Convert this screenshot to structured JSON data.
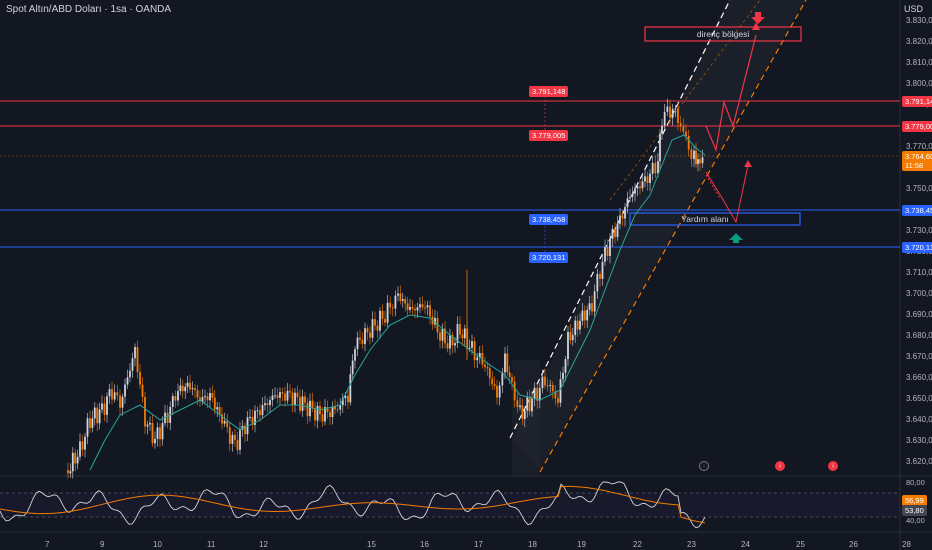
{
  "header": {
    "title": "Spot Altın/ABD Doları · 1sa · OANDA",
    "currency": "USD"
  },
  "price_axis": {
    "ticks": [
      "3.830,000",
      "3.820,000",
      "3.810,000",
      "3.800,000",
      "3.790,000",
      "3.780,000",
      "3.770,000",
      "3.760,000",
      "3.750,000",
      "3.740,000",
      "3.730,000",
      "3.720,000",
      "3.710,000",
      "3.700,000",
      "3.690,000",
      "3.680,000",
      "3.670,000",
      "3.660,000",
      "3.650,000",
      "3.640,000",
      "3.630,000",
      "3.620,000"
    ],
    "range": [
      3615,
      3835
    ]
  },
  "time_axis": {
    "ticks": [
      "7",
      "9",
      "10",
      "11",
      "12",
      "15",
      "16",
      "17",
      "18",
      "19",
      "22",
      "23",
      "24",
      "25",
      "26",
      "28"
    ]
  },
  "levels": {
    "resistance_high": "3.791,148",
    "resistance_low": "3.779,005",
    "support_high": "3.738,458",
    "support_low": "3.720,131",
    "current_price": "3.764,609",
    "countdown": "11:58"
  },
  "zones": {
    "resistance_label": "direnç bölgesi",
    "support_label": "Yardım alanı"
  },
  "rsi": {
    "ticks": [
      "80,00",
      "40,00"
    ],
    "value_a": "56,99",
    "value_b": "53,80"
  },
  "events": {
    "labels": [
      "↓",
      "↓",
      "↓"
    ]
  },
  "colors": {
    "background": "#131722",
    "up_candle": "#d1d4dc",
    "down_candle": "#f57c00",
    "resistance": "#f23645",
    "support": "#2962ff",
    "ma": "#26a69a",
    "rsi_line": "#d1d4dc",
    "rsi_ma": "#f57c00"
  }
}
